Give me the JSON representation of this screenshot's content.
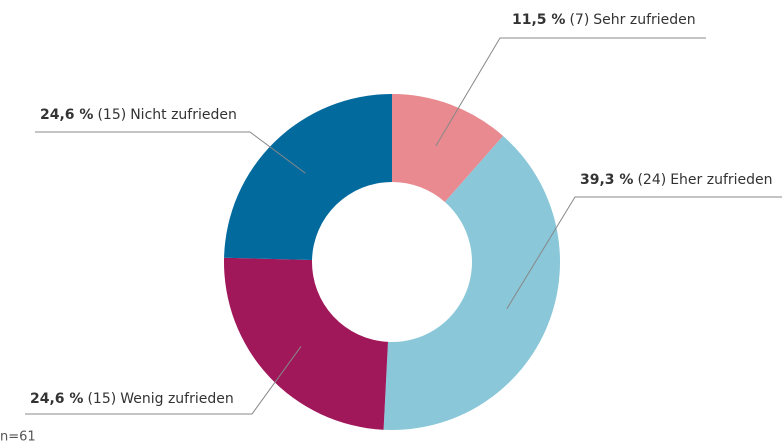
{
  "chart_data": {
    "type": "donut",
    "categories": [
      "Sehr zufrieden",
      "Eher zufrieden",
      "Wenig zufrieden",
      "Nicht zufrieden"
    ],
    "values": [
      11.5,
      39.3,
      24.6,
      24.6
    ],
    "value_labels": [
      "11,5 %",
      "39,3 %",
      "24,6 %",
      "24,6 %"
    ],
    "count_labels": [
      "(7)",
      "(24)",
      "(15)",
      "(15)"
    ],
    "colors": [
      "#e88a8f",
      "#89c7d9",
      "#a0175a",
      "#036a9d"
    ],
    "note": "n=61"
  }
}
